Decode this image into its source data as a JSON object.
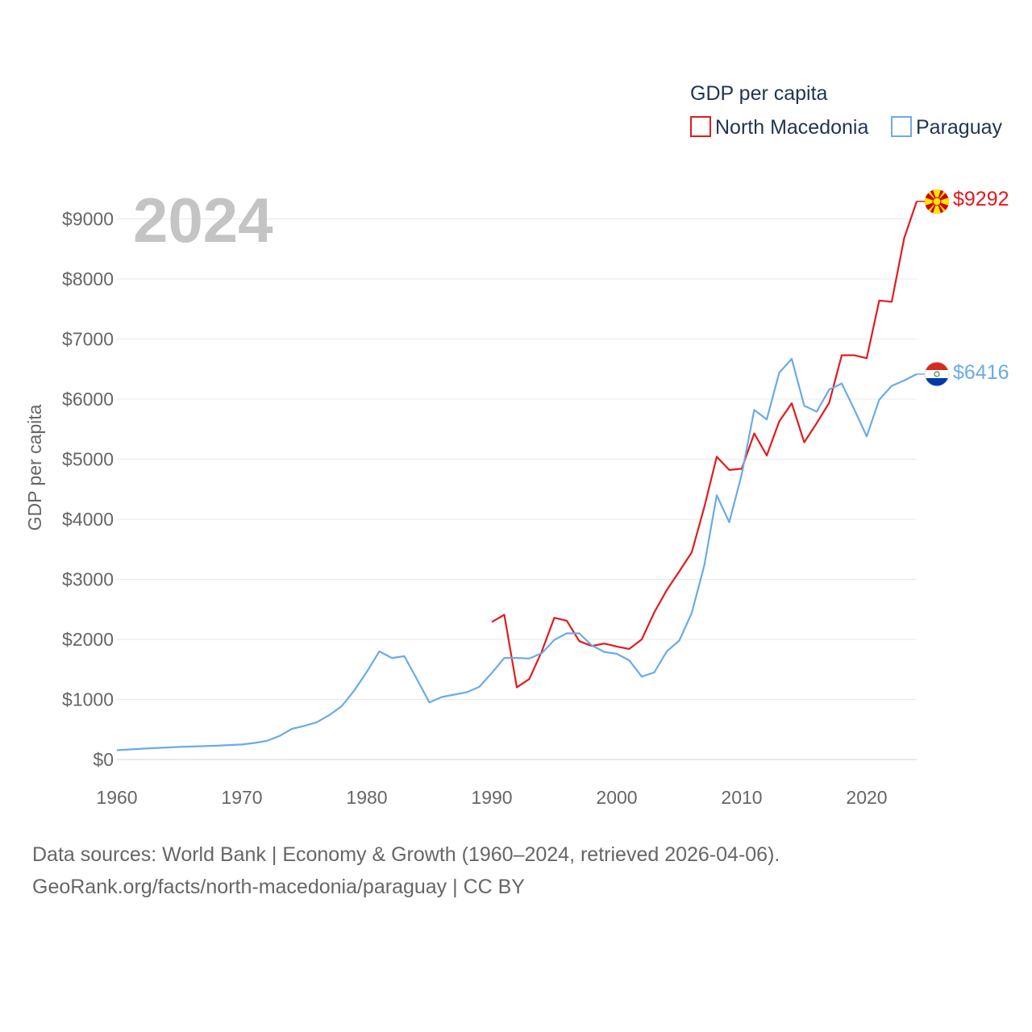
{
  "chart_data": {
    "type": "line",
    "title": "GDP per capita",
    "ylabel": "GDP per capita",
    "xlabel": "",
    "current_year_label": "2024",
    "xlim": [
      1960,
      2024
    ],
    "ylim": [
      0,
      9500
    ],
    "x_ticks": [
      1960,
      1970,
      1980,
      1990,
      2000,
      2010,
      2020
    ],
    "y_ticks": [
      0,
      1000,
      2000,
      3000,
      4000,
      5000,
      6000,
      7000,
      8000,
      9000
    ],
    "y_tick_labels": [
      "$0",
      "$1000",
      "$2000",
      "$3000",
      "$4000",
      "$5000",
      "$6000",
      "$7000",
      "$8000",
      "$9000"
    ],
    "legend_title": "GDP per capita",
    "series": [
      {
        "name": "North Macedonia",
        "color": "#e31a1c",
        "end_label": "$9292",
        "flag_icon": "north-macedonia-flag-icon",
        "points": [
          [
            1990,
            2290
          ],
          [
            1991,
            2410
          ],
          [
            1992,
            1200
          ],
          [
            1993,
            1340
          ],
          [
            1994,
            1800
          ],
          [
            1995,
            2360
          ],
          [
            1996,
            2310
          ],
          [
            1997,
            1970
          ],
          [
            1998,
            1890
          ],
          [
            1999,
            1930
          ],
          [
            2000,
            1880
          ],
          [
            2001,
            1840
          ],
          [
            2002,
            2000
          ],
          [
            2003,
            2450
          ],
          [
            2004,
            2820
          ],
          [
            2005,
            3130
          ],
          [
            2006,
            3450
          ],
          [
            2007,
            4200
          ],
          [
            2008,
            5040
          ],
          [
            2009,
            4820
          ],
          [
            2010,
            4840
          ],
          [
            2011,
            5430
          ],
          [
            2012,
            5060
          ],
          [
            2013,
            5630
          ],
          [
            2014,
            5930
          ],
          [
            2015,
            5280
          ],
          [
            2016,
            5600
          ],
          [
            2017,
            5940
          ],
          [
            2018,
            6730
          ],
          [
            2019,
            6730
          ],
          [
            2020,
            6680
          ],
          [
            2021,
            7640
          ],
          [
            2022,
            7620
          ],
          [
            2023,
            8680
          ],
          [
            2024,
            9292
          ]
        ]
      },
      {
        "name": "Paraguay",
        "color": "#6aabe8",
        "end_label": "$6416",
        "flag_icon": "paraguay-flag-icon",
        "points": [
          [
            1960,
            155
          ],
          [
            1962,
            180
          ],
          [
            1965,
            210
          ],
          [
            1968,
            230
          ],
          [
            1970,
            250
          ],
          [
            1971,
            275
          ],
          [
            1972,
            310
          ],
          [
            1973,
            390
          ],
          [
            1974,
            510
          ],
          [
            1975,
            560
          ],
          [
            1976,
            620
          ],
          [
            1977,
            740
          ],
          [
            1978,
            890
          ],
          [
            1979,
            1150
          ],
          [
            1980,
            1460
          ],
          [
            1981,
            1800
          ],
          [
            1982,
            1690
          ],
          [
            1983,
            1720
          ],
          [
            1984,
            1340
          ],
          [
            1985,
            950
          ],
          [
            1986,
            1040
          ],
          [
            1987,
            1080
          ],
          [
            1988,
            1120
          ],
          [
            1989,
            1210
          ],
          [
            1990,
            1440
          ],
          [
            1991,
            1690
          ],
          [
            1992,
            1690
          ],
          [
            1993,
            1680
          ],
          [
            1994,
            1770
          ],
          [
            1995,
            1990
          ],
          [
            1996,
            2100
          ],
          [
            1997,
            2100
          ],
          [
            1998,
            1900
          ],
          [
            1999,
            1790
          ],
          [
            2000,
            1760
          ],
          [
            2001,
            1650
          ],
          [
            2002,
            1380
          ],
          [
            2003,
            1450
          ],
          [
            2004,
            1800
          ],
          [
            2005,
            1980
          ],
          [
            2006,
            2440
          ],
          [
            2007,
            3230
          ],
          [
            2008,
            4400
          ],
          [
            2009,
            3950
          ],
          [
            2010,
            4750
          ],
          [
            2011,
            5820
          ],
          [
            2012,
            5660
          ],
          [
            2013,
            6440
          ],
          [
            2014,
            6670
          ],
          [
            2015,
            5890
          ],
          [
            2016,
            5790
          ],
          [
            2017,
            6160
          ],
          [
            2018,
            6260
          ],
          [
            2019,
            5830
          ],
          [
            2020,
            5380
          ],
          [
            2021,
            5990
          ],
          [
            2022,
            6220
          ],
          [
            2023,
            6310
          ],
          [
            2024,
            6416
          ]
        ]
      }
    ]
  },
  "footer": {
    "line1": "Data sources: World Bank | Economy & Growth (1960–2024, retrieved 2026-04-06).",
    "line2": "GeoRank.org/facts/north-macedonia/paraguay | CC BY"
  }
}
